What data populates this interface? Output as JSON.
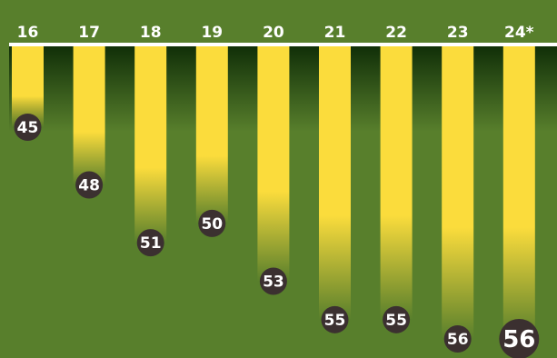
{
  "chart_data": {
    "type": "bar",
    "orientation": "vertical-hanging",
    "categories": [
      "16",
      "17",
      "18",
      "19",
      "20",
      "21",
      "22",
      "23",
      "24*"
    ],
    "values": [
      45,
      48,
      51,
      50,
      53,
      55,
      55,
      56,
      56
    ],
    "title": "",
    "xlabel": "",
    "ylabel": "",
    "ylim": [
      40,
      57
    ],
    "grid": false,
    "legend": "none",
    "colors": {
      "background": "#587f2c",
      "bar": "#fbdc3c",
      "baseline": "#ffffff",
      "label_text": "#ffffff",
      "badge": "#3b3030"
    }
  }
}
